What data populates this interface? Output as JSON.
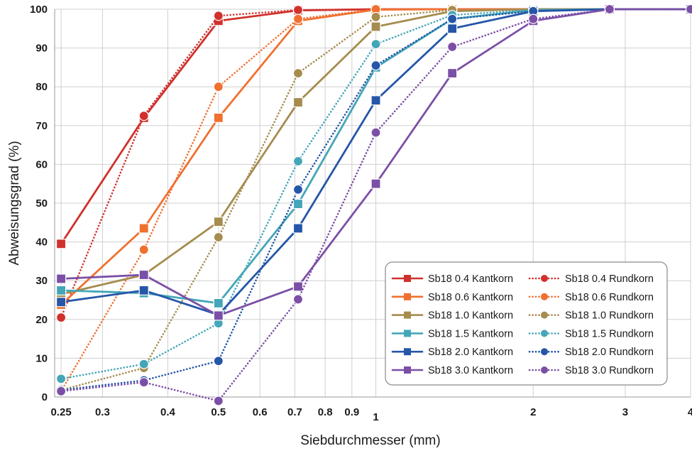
{
  "chart_data": {
    "type": "line",
    "title": "",
    "xlabel": "Siebdurchmesser (mm)",
    "ylabel": "Abweisungsgrad (%)",
    "xscale": "log",
    "xlim": [
      0.243,
      4.0
    ],
    "ylim": [
      0,
      100
    ],
    "x": [
      0.25,
      0.36,
      0.5,
      0.71,
      1.0,
      1.4,
      2.0,
      2.8,
      4.0
    ],
    "xticks": [
      0.25,
      0.3,
      0.4,
      0.5,
      0.6,
      0.7,
      0.8,
      0.9,
      1,
      2,
      3,
      4
    ],
    "xtick_labels": [
      "0.25",
      "0.3",
      "0.4",
      "0.5",
      "0.6",
      "0.7",
      "0.8",
      "0.9",
      "1",
      "2",
      "3",
      "4"
    ],
    "yticks": [
      0,
      10,
      20,
      30,
      40,
      50,
      60,
      70,
      80,
      90,
      100
    ],
    "ytick_labels": [
      "0",
      "10",
      "20",
      "30",
      "40",
      "50",
      "60",
      "70",
      "80",
      "90",
      "100"
    ],
    "grid": true,
    "legend_position": "bottom-right",
    "series": [
      {
        "name": "Sb18 0.4 Kantkorn",
        "color": "#d0312d",
        "style": "solid",
        "marker": "square",
        "values": [
          39.5,
          72,
          97,
          99.7,
          100,
          100,
          100,
          100,
          100
        ]
      },
      {
        "name": "Sb18 0.4 Rundkorn",
        "color": "#d0312d",
        "style": "dotted",
        "marker": "circle",
        "values": [
          20.5,
          72.5,
          98.3,
          99.8,
          100,
          100,
          100,
          100,
          100
        ]
      },
      {
        "name": "Sb18 0.6 Kantkorn",
        "color": "#f07030",
        "style": "solid",
        "marker": "square",
        "values": [
          23.8,
          43.5,
          72,
          97,
          99.9,
          100,
          100,
          100,
          100
        ]
      },
      {
        "name": "Sb18 0.6 Rundkorn",
        "color": "#f07030",
        "style": "dotted",
        "marker": "circle",
        "values": [
          1.5,
          38,
          80,
          97.5,
          100,
          100,
          100,
          100,
          100
        ]
      },
      {
        "name": "Sb18 1.0 Kantkorn",
        "color": "#a68c4e",
        "style": "solid",
        "marker": "square",
        "values": [
          26.5,
          31.5,
          45.2,
          76,
          95.5,
          99.5,
          100,
          100,
          100
        ]
      },
      {
        "name": "Sb18 1.0 Rundkorn",
        "color": "#a68c4e",
        "style": "dotted",
        "marker": "circle",
        "values": [
          1.8,
          7.5,
          41.2,
          83.5,
          98,
          99.8,
          100,
          100,
          100
        ]
      },
      {
        "name": "Sb18 1.5 Kantkorn",
        "color": "#44a6b8",
        "style": "solid",
        "marker": "square",
        "values": [
          27.5,
          26.8,
          24.2,
          49.8,
          85,
          97.5,
          99.8,
          100,
          100
        ]
      },
      {
        "name": "Sb18 1.5 Rundkorn",
        "color": "#44a6b8",
        "style": "dotted",
        "marker": "circle",
        "values": [
          4.7,
          8.5,
          19,
          60.8,
          91,
          98.5,
          99.8,
          100,
          100
        ]
      },
      {
        "name": "Sb18 2.0 Kantkorn",
        "color": "#2556a8",
        "style": "solid",
        "marker": "square",
        "values": [
          24.5,
          27.5,
          21.2,
          43.5,
          76.5,
          95,
          99.5,
          100,
          100
        ]
      },
      {
        "name": "Sb18 2.0 Rundkorn",
        "color": "#2556a8",
        "style": "dotted",
        "marker": "circle",
        "values": [
          1.8,
          4.3,
          9.3,
          53.5,
          85.5,
          97.5,
          99.5,
          100,
          100
        ]
      },
      {
        "name": "Sb18 3.0 Kantkorn",
        "color": "#7b4fa6",
        "style": "solid",
        "marker": "square",
        "values": [
          30.5,
          31.5,
          21,
          28.5,
          55,
          83.5,
          97,
          100,
          100
        ]
      },
      {
        "name": "Sb18 3.0 Rundkorn",
        "color": "#7b4fa6",
        "style": "dotted",
        "marker": "circle",
        "values": [
          1.5,
          3.8,
          -1,
          25.2,
          68.2,
          90.3,
          97.5,
          100,
          100
        ]
      }
    ]
  }
}
